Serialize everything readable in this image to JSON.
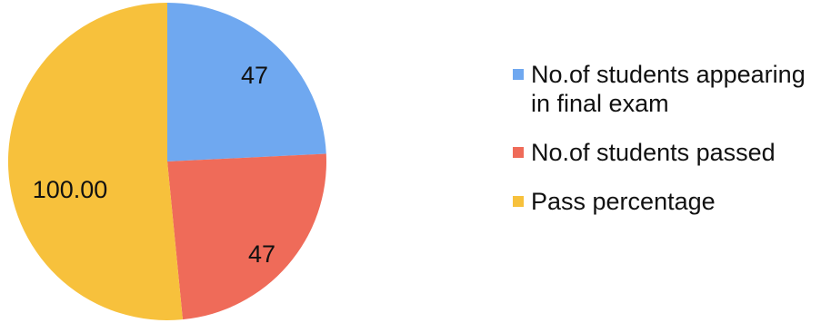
{
  "chart_data": {
    "type": "pie",
    "slices": [
      {
        "label": "No.of students appearing in final exam",
        "value": 47,
        "display": "47",
        "color": "#6fa8f0"
      },
      {
        "label": "No.of students passed",
        "value": 47,
        "display": "47",
        "color": "#ef6b59"
      },
      {
        "label": "Pass percentage",
        "value": 100,
        "display": "100.00",
        "color": "#f7c13c"
      }
    ],
    "start_angle_deg": 0,
    "direction": "clockwise",
    "legend_position": "right"
  }
}
